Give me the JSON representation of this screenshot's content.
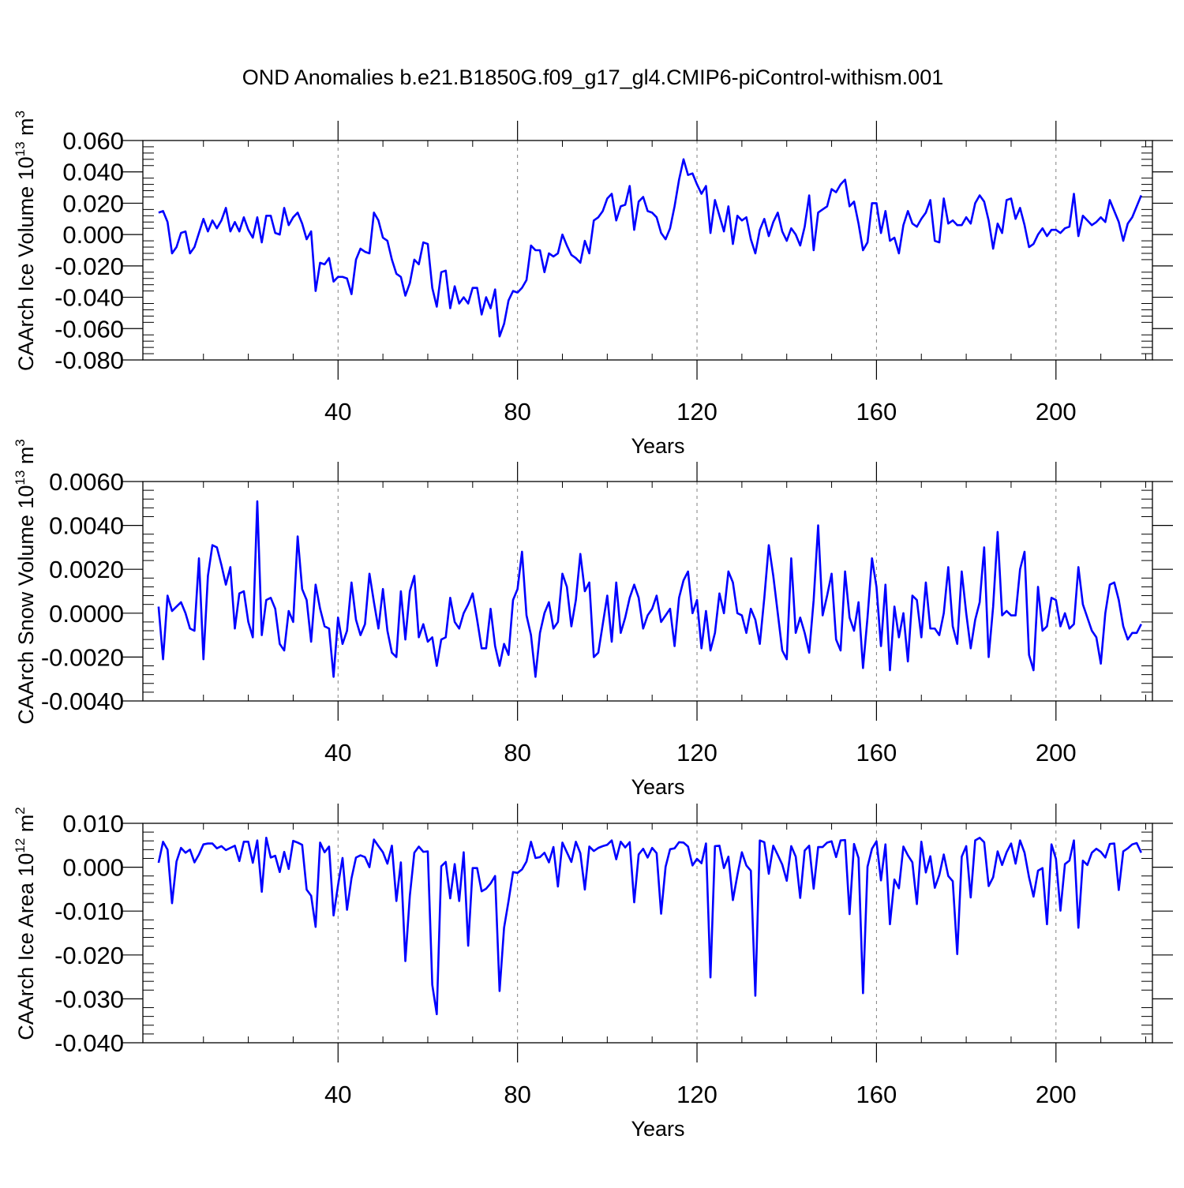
{
  "title": "OND Anomalies b.e21.B1850G.f09_g17_gl4.CMIP6-piControl-withism.001",
  "colors": {
    "line": "#0000ff",
    "axis": "#000000",
    "grid": "#808080",
    "background": "#ffffff"
  },
  "chart_data": [
    {
      "type": "line",
      "id": "ice-volume",
      "title": "",
      "xlabel": "Years",
      "ylabel_main": "CAArch Ice Volume 10",
      "ylabel_exp": "13",
      "ylabel_unit": " m",
      "ylabel_unit_exp": "3",
      "xlim": [
        -3.5,
        221.5
      ],
      "ylim": [
        -0.08,
        0.06
      ],
      "xticks": [
        40,
        80,
        120,
        160,
        200
      ],
      "xtick_labels": [
        "40",
        "80",
        "120",
        "160",
        "200"
      ],
      "yticks": [
        -0.08,
        -0.06,
        -0.04,
        -0.02,
        0.0,
        0.02,
        0.04,
        0.06
      ],
      "ytick_labels": [
        "-0.080",
        "-0.060",
        "-0.040",
        "-0.020",
        "0.000",
        "0.020",
        "0.040",
        "0.060"
      ],
      "grid_x_dashed": true,
      "x_start": 0,
      "values": [
        0.014,
        0.015,
        0.008,
        -0.012,
        -0.008,
        0.001,
        0.002,
        -0.012,
        -0.008,
        0.001,
        0.01,
        0.002,
        0.009,
        0.004,
        0.009,
        0.017,
        0.002,
        0.008,
        0.002,
        0.011,
        0.003,
        -0.002,
        0.011,
        -0.005,
        0.012,
        0.012,
        0.001,
        0.0,
        0.017,
        0.006,
        0.011,
        0.014,
        0.007,
        -0.003,
        0.002,
        -0.036,
        -0.018,
        -0.019,
        -0.015,
        -0.03,
        -0.027,
        -0.027,
        -0.028,
        -0.038,
        -0.016,
        -0.009,
        -0.011,
        -0.012,
        0.014,
        0.009,
        -0.002,
        -0.004,
        -0.016,
        -0.025,
        -0.027,
        -0.039,
        -0.031,
        -0.016,
        -0.019,
        -0.005,
        -0.006,
        -0.034,
        -0.046,
        -0.024,
        -0.023,
        -0.047,
        -0.033,
        -0.044,
        -0.04,
        -0.044,
        -0.034,
        -0.034,
        -0.051,
        -0.04,
        -0.047,
        -0.035,
        -0.065,
        -0.057,
        -0.042,
        -0.036,
        -0.037,
        -0.034,
        -0.029,
        -0.007,
        -0.01,
        -0.01,
        -0.024,
        -0.012,
        -0.014,
        -0.012,
        0.0,
        -0.007,
        -0.013,
        -0.015,
        -0.018,
        -0.004,
        -0.012,
        0.009,
        0.011,
        0.015,
        0.023,
        0.026,
        0.009,
        0.018,
        0.019,
        0.031,
        0.003,
        0.021,
        0.024,
        0.015,
        0.014,
        0.011,
        0.001,
        -0.003,
        0.004,
        0.018,
        0.035,
        0.048,
        0.038,
        0.039,
        0.032,
        0.026,
        0.031,
        0.001,
        0.022,
        0.012,
        0.002,
        0.018,
        -0.006,
        0.012,
        0.009,
        0.011,
        -0.003,
        -0.012,
        0.003,
        0.01,
        -0.001,
        0.008,
        0.014,
        0.002,
        -0.004,
        0.004,
        0.0,
        -0.007,
        0.005,
        0.025,
        -0.01,
        0.014,
        0.016,
        0.018,
        0.029,
        0.027,
        0.032,
        0.035,
        0.018,
        0.021,
        0.007,
        -0.01,
        -0.005,
        0.02,
        0.02,
        0.001,
        0.015,
        -0.004,
        -0.002,
        -0.012,
        0.006,
        0.015,
        0.007,
        0.005,
        0.01,
        0.014,
        0.022,
        -0.004,
        -0.005,
        0.023,
        0.007,
        0.009,
        0.006,
        0.006,
        0.011,
        0.007,
        0.02,
        0.025,
        0.021,
        0.009,
        -0.009,
        0.007,
        0.001,
        0.022,
        0.023,
        0.01,
        0.017,
        0.006,
        -0.008,
        -0.006,
        0.0,
        0.004,
        -0.001,
        0.003,
        0.003,
        0.001,
        0.004,
        0.005,
        0.026,
        -0.001,
        0.012,
        0.009,
        0.006,
        0.008,
        0.011,
        0.008,
        0.022,
        0.015,
        0.008,
        -0.004,
        0.007,
        0.011,
        0.018,
        0.025
      ]
    },
    {
      "type": "line",
      "id": "snow-volume",
      "title": "",
      "xlabel": "Years",
      "ylabel_main": "CAArch Snow Volume 10",
      "ylabel_exp": "13",
      "ylabel_unit": " m",
      "ylabel_unit_exp": "3",
      "xlim": [
        -3.5,
        221.5
      ],
      "ylim": [
        -0.004,
        0.006
      ],
      "xticks": [
        40,
        80,
        120,
        160,
        200
      ],
      "xtick_labels": [
        "40",
        "80",
        "120",
        "160",
        "200"
      ],
      "yticks": [
        -0.004,
        -0.002,
        0.0,
        0.002,
        0.004,
        0.006
      ],
      "ytick_labels": [
        "-0.0040",
        "-0.0020",
        "0.0000",
        "0.0020",
        "0.0040",
        "0.0060"
      ],
      "grid_x_dashed": true,
      "x_start": 0,
      "values": [
        0.0003,
        -0.0021,
        0.0008,
        0.0001,
        0.0003,
        0.0005,
        0.0,
        -0.0007,
        -0.0008,
        0.0025,
        -0.0021,
        0.0017,
        0.0031,
        0.003,
        0.0022,
        0.0013,
        0.0021,
        -0.0007,
        0.0009,
        0.001,
        -0.0004,
        -0.0011,
        0.0051,
        -0.001,
        0.0006,
        0.0007,
        0.0002,
        -0.0014,
        -0.0017,
        0.0001,
        -0.0004,
        0.0035,
        0.0011,
        0.0006,
        -0.0013,
        0.0013,
        0.0002,
        -0.0006,
        -0.0007,
        -0.0029,
        -0.0002,
        -0.0014,
        -0.0008,
        0.0014,
        -0.0003,
        -0.001,
        -0.0005,
        0.0018,
        0.0005,
        -0.0007,
        0.0011,
        -0.0008,
        -0.0018,
        -0.002,
        0.001,
        -0.0012,
        0.001,
        0.0017,
        -0.0011,
        -0.0005,
        -0.0013,
        -0.0011,
        -0.0024,
        -0.0012,
        -0.0011,
        0.0007,
        -0.0004,
        -0.0007,
        0.0,
        0.0004,
        0.0009,
        -0.0003,
        -0.0016,
        -0.0016,
        0.0002,
        -0.0015,
        -0.0024,
        -0.0014,
        -0.0019,
        0.0006,
        0.0011,
        0.0028,
        -0.0001,
        -0.001,
        -0.0029,
        -0.0009,
        0.0,
        0.0005,
        -0.0007,
        -0.0004,
        0.0018,
        0.0012,
        -0.0006,
        0.0006,
        0.0027,
        0.001,
        0.0014,
        -0.002,
        -0.0018,
        -0.0005,
        0.0008,
        -0.0013,
        0.0014,
        -0.0009,
        -0.0002,
        0.0007,
        0.0013,
        0.0007,
        -0.0007,
        -0.0001,
        0.0002,
        0.0008,
        -0.0004,
        -0.0001,
        0.0002,
        -0.0015,
        0.0007,
        0.0015,
        0.0019,
        0.0,
        0.0006,
        -0.0016,
        0.0001,
        -0.0017,
        -0.0009,
        0.0009,
        0.0,
        0.0019,
        0.0014,
        0.0,
        -0.0001,
        -0.0009,
        0.0002,
        -0.0003,
        -0.0014,
        0.0007,
        0.0031,
        0.0017,
        0.0,
        -0.0017,
        -0.0021,
        0.0025,
        -0.0009,
        -0.0002,
        -0.0009,
        -0.0018,
        0.0006,
        0.004,
        -0.0001,
        0.0008,
        0.0018,
        -0.0012,
        -0.0017,
        0.0019,
        -0.0002,
        -0.0008,
        0.0005,
        -0.0025,
        -0.0002,
        0.0025,
        0.0012,
        -0.0015,
        0.0013,
        -0.0026,
        0.0003,
        -0.0011,
        0.0,
        -0.0022,
        0.0008,
        0.0006,
        -0.0011,
        0.0014,
        -0.0007,
        -0.0007,
        -0.001,
        0.0,
        0.0021,
        -0.0006,
        -0.0014,
        0.0019,
        0.0,
        -0.0016,
        -0.0003,
        0.0005,
        0.003,
        -0.002,
        0.0003,
        0.0037,
        -0.0001,
        0.0001,
        -0.0001,
        -0.0001,
        0.002,
        0.0028,
        -0.0019,
        -0.0026,
        0.0012,
        -0.0008,
        -0.0006,
        0.0007,
        0.0006,
        -0.0006,
        0.0,
        -0.0007,
        -0.0005,
        0.0021,
        0.0004,
        -0.0002,
        -0.0008,
        -0.0011,
        -0.0023,
        0.0,
        0.0013,
        0.0014,
        0.0006,
        -0.0006,
        -0.0012,
        -0.0009,
        -0.0009,
        -0.0005
      ]
    },
    {
      "type": "line",
      "id": "ice-area",
      "title": "",
      "xlabel": "Years",
      "ylabel_main": "CAArch Ice Area 10",
      "ylabel_exp": "12",
      "ylabel_unit": " m",
      "ylabel_unit_exp": "2",
      "xlim": [
        -3.5,
        221.5
      ],
      "ylim": [
        -0.04,
        0.01
      ],
      "xticks": [
        40,
        80,
        120,
        160,
        200
      ],
      "xtick_labels": [
        "40",
        "80",
        "120",
        "160",
        "200"
      ],
      "yticks": [
        -0.04,
        -0.03,
        -0.02,
        -0.01,
        0.0,
        0.01
      ],
      "ytick_labels": [
        "-0.040",
        "-0.030",
        "-0.020",
        "-0.010",
        "0.000",
        "0.010"
      ],
      "grid_x_dashed": true,
      "x_start": 0,
      "values": [
        0.001,
        0.0058,
        0.004,
        -0.0082,
        0.0013,
        0.0044,
        0.0033,
        0.004,
        0.0011,
        0.0029,
        0.0052,
        0.0054,
        0.0054,
        0.0043,
        0.0048,
        0.0039,
        0.0044,
        0.0049,
        0.0014,
        0.0058,
        0.0058,
        0.001,
        0.0061,
        -0.0056,
        0.0067,
        0.0022,
        0.0026,
        -0.0011,
        0.0035,
        -0.0004,
        0.006,
        0.0056,
        0.0051,
        -0.0051,
        -0.0065,
        -0.0136,
        0.0056,
        0.0034,
        0.0047,
        -0.011,
        -0.0041,
        0.0021,
        -0.0097,
        -0.0025,
        0.0022,
        0.0027,
        0.0023,
        0.0,
        0.0063,
        0.0048,
        0.0034,
        0.0008,
        0.0049,
        -0.0077,
        0.0011,
        -0.0214,
        -0.0065,
        0.0033,
        0.0047,
        0.0035,
        0.0036,
        -0.0268,
        -0.0335,
        0.0002,
        0.0012,
        -0.0071,
        0.0007,
        -0.0077,
        0.0034,
        -0.0179,
        -0.0002,
        -0.0002,
        -0.0055,
        -0.0049,
        -0.0037,
        -0.002,
        -0.0282,
        -0.0138,
        -0.0077,
        -0.0011,
        -0.0013,
        -0.0005,
        0.0013,
        0.0058,
        0.0021,
        0.0023,
        0.0033,
        0.0011,
        0.0046,
        -0.0044,
        0.0056,
        0.0034,
        0.0012,
        0.0058,
        0.0032,
        -0.0051,
        0.0047,
        0.0037,
        0.0044,
        0.0048,
        0.0051,
        0.0061,
        0.0018,
        0.0058,
        0.0045,
        0.0057,
        -0.008,
        0.0029,
        0.0042,
        0.0022,
        0.0044,
        0.0032,
        -0.0106,
        0.0001,
        0.0041,
        0.0043,
        0.0057,
        0.0056,
        0.0047,
        0.0004,
        0.0019,
        0.0009,
        0.0054,
        -0.0251,
        0.0048,
        0.0049,
        -0.0002,
        0.0024,
        -0.0075,
        -0.0018,
        0.0034,
        0.0004,
        -0.0008,
        -0.0293,
        0.0061,
        0.0057,
        -0.0015,
        0.0049,
        0.0028,
        0.0006,
        -0.0031,
        0.0048,
        0.0024,
        -0.007,
        0.0038,
        0.0049,
        -0.0049,
        0.0046,
        0.0046,
        0.0056,
        0.0059,
        0.0023,
        0.0061,
        0.0062,
        -0.0107,
        0.0053,
        0.0021,
        -0.0287,
        0.0001,
        0.0042,
        0.0059,
        -0.003,
        0.0052,
        -0.013,
        -0.0028,
        -0.0048,
        0.0047,
        0.0027,
        0.0011,
        -0.0084,
        0.0058,
        -0.0012,
        0.0025,
        -0.0047,
        -0.0018,
        0.0029,
        -0.002,
        -0.0032,
        -0.0198,
        0.0024,
        0.0048,
        -0.0069,
        0.0061,
        0.0067,
        0.0057,
        -0.0043,
        -0.0023,
        0.0036,
        0.0005,
        0.0034,
        0.0054,
        0.0008,
        0.0061,
        0.0033,
        -0.0023,
        -0.0067,
        -0.0008,
        -0.0002,
        -0.013,
        0.0052,
        0.0019,
        -0.0099,
        0.0007,
        0.0015,
        0.0061,
        -0.0138,
        0.0015,
        0.0005,
        0.0033,
        0.0042,
        0.0035,
        0.0022,
        0.0053,
        0.0054,
        -0.0052,
        0.0036,
        0.0043,
        0.0052,
        0.0055,
        0.0033
      ]
    }
  ]
}
